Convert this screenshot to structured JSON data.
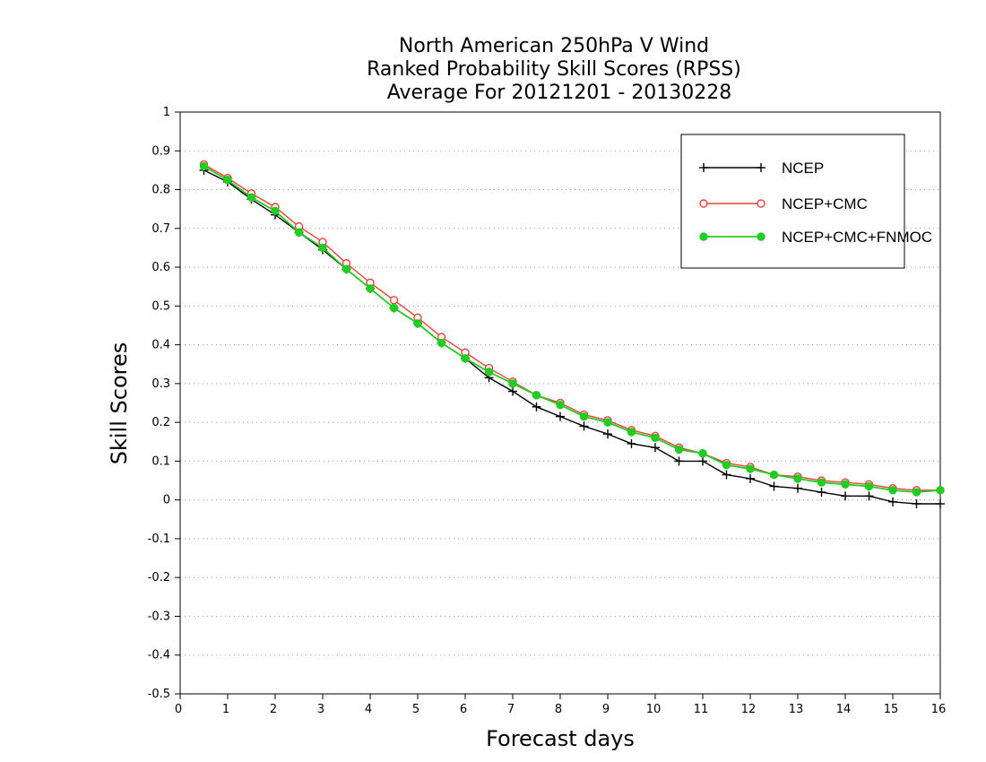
{
  "chart_data": {
    "type": "line",
    "title": [
      "North American 250hPa V Wind",
      "Ranked Probability Skill Scores (RPSS)",
      "Average For 20121201 - 20130228"
    ],
    "xlabel": "Forecast days",
    "ylabel": "Skill Scores",
    "xlim": [
      0,
      16
    ],
    "ylim": [
      -0.5,
      1
    ],
    "x_ticks": [
      0,
      1,
      2,
      3,
      4,
      5,
      6,
      7,
      8,
      9,
      10,
      11,
      12,
      13,
      14,
      15,
      16
    ],
    "y_ticks": [
      -0.5,
      -0.4,
      -0.3,
      -0.2,
      -0.1,
      0,
      0.1,
      0.2,
      0.3,
      0.4,
      0.5,
      0.6,
      0.7,
      0.8,
      0.9,
      1
    ],
    "y_tick_labels": [
      "-0.5",
      "-0.4",
      "-0.3",
      "-0.2",
      "-0.1",
      "0",
      "0.1",
      "0.2",
      "0.3",
      "0.4",
      "0.5",
      "0.6",
      "0.7",
      "0.8",
      "0.9",
      "1"
    ],
    "grid": "horizontal dotted",
    "legend_position": "top-right",
    "x": [
      0.5,
      1,
      1.5,
      2,
      2.5,
      3,
      3.5,
      4,
      4.5,
      5,
      5.5,
      6,
      6.5,
      7,
      7.5,
      8,
      8.5,
      9,
      9.5,
      10,
      10.5,
      11,
      11.5,
      12,
      12.5,
      13,
      13.5,
      14,
      14.5,
      15,
      15.5,
      16
    ],
    "series": [
      {
        "name": "NCEP",
        "color": "#000000",
        "marker": "plus",
        "values": [
          0.85,
          0.82,
          0.775,
          0.735,
          0.69,
          0.645,
          0.595,
          0.545,
          0.495,
          0.455,
          0.405,
          0.365,
          0.315,
          0.28,
          0.24,
          0.215,
          0.19,
          0.17,
          0.145,
          0.135,
          0.1,
          0.1,
          0.065,
          0.055,
          0.035,
          0.03,
          0.02,
          0.01,
          0.01,
          -0.005,
          -0.01,
          -0.01
        ]
      },
      {
        "name": "NCEP+CMC",
        "color": "#e8443a",
        "marker": "open-circle",
        "values": [
          0.865,
          0.83,
          0.79,
          0.755,
          0.705,
          0.665,
          0.61,
          0.56,
          0.515,
          0.47,
          0.42,
          0.38,
          0.34,
          0.305,
          0.27,
          0.25,
          0.22,
          0.205,
          0.18,
          0.165,
          0.135,
          0.12,
          0.095,
          0.085,
          0.065,
          0.06,
          0.05,
          0.045,
          0.04,
          0.03,
          0.025,
          0.025
        ]
      },
      {
        "name": "NCEP+CMC+FNMOC",
        "color": "#22cc22",
        "marker": "filled-circle",
        "values": [
          0.86,
          0.825,
          0.78,
          0.745,
          0.69,
          0.65,
          0.595,
          0.545,
          0.495,
          0.455,
          0.405,
          0.365,
          0.33,
          0.3,
          0.27,
          0.245,
          0.215,
          0.2,
          0.175,
          0.16,
          0.13,
          0.12,
          0.09,
          0.08,
          0.065,
          0.055,
          0.045,
          0.04,
          0.035,
          0.025,
          0.02,
          0.025
        ]
      }
    ]
  }
}
